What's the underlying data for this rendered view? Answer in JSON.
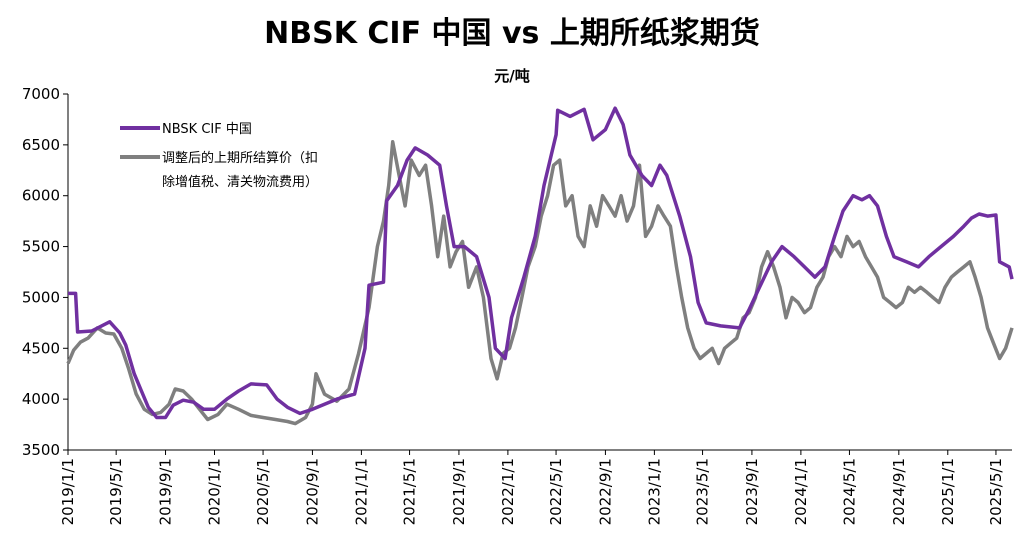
{
  "chart_data": {
    "type": "line",
    "title": "NBSK CIF 中国 vs 上期所纸浆期货",
    "ylabel": "元/吨",
    "xlabel": "",
    "ylim": [
      3500,
      7000
    ],
    "yticks": [
      3500,
      4000,
      4500,
      5000,
      5500,
      6000,
      6500,
      7000
    ],
    "xlim": [
      "2019/1/1",
      "2025/6/10"
    ],
    "xticks": [
      "2019/1/1",
      "2019/5/1",
      "2019/9/1",
      "2020/1/1",
      "2020/5/1",
      "2020/9/1",
      "2021/1/1",
      "2021/5/1",
      "2021/9/1",
      "2022/1/1",
      "2022/5/1",
      "2022/9/1",
      "2023/1/1",
      "2023/5/1",
      "2023/9/1",
      "2024/1/1",
      "2024/5/1",
      "2024/9/1",
      "2025/1/1",
      "2025/5/1"
    ],
    "grid": false,
    "legend_position": "top-left",
    "series": [
      {
        "name": "NBSK CIF 中国",
        "color": "#7030A0",
        "points": [
          [
            "2019/1/1",
            5040
          ],
          [
            "2019/1/20",
            5040
          ],
          [
            "2019/1/25",
            4660
          ],
          [
            "2019/3/1",
            4670
          ],
          [
            "2019/4/15",
            4760
          ],
          [
            "2019/5/10",
            4650
          ],
          [
            "2019/5/25",
            4530
          ],
          [
            "2019/6/15",
            4250
          ],
          [
            "2019/7/1",
            4100
          ],
          [
            "2019/7/20",
            3920
          ],
          [
            "2019/8/10",
            3820
          ],
          [
            "2019/9/1",
            3820
          ],
          [
            "2019/9/20",
            3940
          ],
          [
            "2019/10/15",
            3990
          ],
          [
            "2019/11/10",
            3970
          ],
          [
            "2019/12/5",
            3900
          ],
          [
            "2020/1/1",
            3900
          ],
          [
            "2020/2/1",
            4000
          ],
          [
            "2020/3/1",
            4080
          ],
          [
            "2020/4/1",
            4150
          ],
          [
            "2020/5/10",
            4140
          ],
          [
            "2020/6/5",
            4000
          ],
          [
            "2020/7/1",
            3920
          ],
          [
            "2020/8/1",
            3860
          ],
          [
            "2020/9/1",
            3900
          ],
          [
            "2020/10/1",
            3950
          ],
          [
            "2020/11/1",
            4000
          ],
          [
            "2020/12/15",
            4050
          ],
          [
            "2021/1/10",
            4500
          ],
          [
            "2021/1/20",
            5120
          ],
          [
            "2021/2/25",
            5150
          ],
          [
            "2021/3/5",
            5950
          ],
          [
            "2021/4/1",
            6100
          ],
          [
            "2021/4/25",
            6350
          ],
          [
            "2021/5/15",
            6470
          ],
          [
            "2021/6/15",
            6400
          ],
          [
            "2021/7/15",
            6300
          ],
          [
            "2021/8/1",
            5900
          ],
          [
            "2021/8/20",
            5500
          ],
          [
            "2021/9/15",
            5500
          ],
          [
            "2021/10/15",
            5400
          ],
          [
            "2021/11/15",
            5000
          ],
          [
            "2021/12/1",
            4500
          ],
          [
            "2021/12/25",
            4400
          ],
          [
            "2022/1/10",
            4800
          ],
          [
            "2022/2/10",
            5200
          ],
          [
            "2022/3/10",
            5600
          ],
          [
            "2022/4/1",
            6100
          ],
          [
            "2022/5/1",
            6600
          ],
          [
            "2022/5/5",
            6840
          ],
          [
            "2022/6/5",
            6780
          ],
          [
            "2022/7/10",
            6850
          ],
          [
            "2022/8/1",
            6550
          ],
          [
            "2022/9/1",
            6650
          ],
          [
            "2022/9/25",
            6860
          ],
          [
            "2022/10/15",
            6700
          ],
          [
            "2022/11/1",
            6400
          ],
          [
            "2022/12/1",
            6200
          ],
          [
            "2022/12/25",
            6100
          ],
          [
            "2023/1/15",
            6300
          ],
          [
            "2023/2/1",
            6200
          ],
          [
            "2023/3/5",
            5800
          ],
          [
            "2023/4/1",
            5400
          ],
          [
            "2023/4/20",
            4950
          ],
          [
            "2023/5/10",
            4750
          ],
          [
            "2023/6/15",
            4720
          ],
          [
            "2023/8/1",
            4700
          ],
          [
            "2023/8/25",
            4880
          ],
          [
            "2023/9/20",
            5100
          ],
          [
            "2023/10/20",
            5350
          ],
          [
            "2023/11/15",
            5500
          ],
          [
            "2023/12/15",
            5400
          ],
          [
            "2024/1/10",
            5300
          ],
          [
            "2024/2/5",
            5200
          ],
          [
            "2024/3/1",
            5300
          ],
          [
            "2024/3/25",
            5600
          ],
          [
            "2024/4/15",
            5850
          ],
          [
            "2024/5/10",
            6000
          ],
          [
            "2024/6/1",
            5960
          ],
          [
            "2024/6/20",
            6000
          ],
          [
            "2024/7/10",
            5900
          ],
          [
            "2024/8/1",
            5600
          ],
          [
            "2024/8/20",
            5400
          ],
          [
            "2024/9/20",
            5350
          ],
          [
            "2024/10/20",
            5300
          ],
          [
            "2024/11/15",
            5400
          ],
          [
            "2024/12/15",
            5500
          ],
          [
            "2025/1/15",
            5600
          ],
          [
            "2025/2/10",
            5700
          ],
          [
            "2025/3/1",
            5780
          ],
          [
            "2025/3/20",
            5820
          ],
          [
            "2025/4/10",
            5800
          ],
          [
            "2025/5/1",
            5810
          ],
          [
            "2025/5/10",
            5350
          ],
          [
            "2025/6/3",
            5300
          ],
          [
            "2025/6/10",
            5180
          ]
        ]
      },
      {
        "name": "调整后的上期所结算价（扣除增值税、清关物流费用）",
        "color": "#7F7F7F",
        "points": [
          [
            "2019/1/1",
            4350
          ],
          [
            "2019/1/15",
            4480
          ],
          [
            "2019/2/1",
            4560
          ],
          [
            "2019/2/20",
            4600
          ],
          [
            "2019/3/15",
            4700
          ],
          [
            "2019/4/5",
            4650
          ],
          [
            "2019/4/25",
            4640
          ],
          [
            "2019/5/15",
            4500
          ],
          [
            "2019/6/1",
            4300
          ],
          [
            "2019/6/20",
            4050
          ],
          [
            "2019/7/10",
            3900
          ],
          [
            "2019/7/30",
            3850
          ],
          [
            "2019/8/20",
            3870
          ],
          [
            "2019/9/10",
            3950
          ],
          [
            "2019/9/25",
            4100
          ],
          [
            "2019/10/15",
            4080
          ],
          [
            "2019/11/5",
            4000
          ],
          [
            "2019/11/25",
            3900
          ],
          [
            "2019/12/15",
            3800
          ],
          [
            "2020/1/10",
            3850
          ],
          [
            "2020/2/1",
            3950
          ],
          [
            "2020/3/1",
            3900
          ],
          [
            "2020/4/1",
            3840
          ],
          [
            "2020/5/1",
            3820
          ],
          [
            "2020/6/1",
            3800
          ],
          [
            "2020/7/1",
            3780
          ],
          [
            "2020/7/20",
            3760
          ],
          [
            "2020/8/15",
            3820
          ],
          [
            "2020/9/1",
            3950
          ],
          [
            "2020/9/10",
            4250
          ],
          [
            "2020/10/1",
            4050
          ],
          [
            "2020/11/1",
            3980
          ],
          [
            "2020/12/1",
            4100
          ],
          [
            "2020/12/25",
            4450
          ],
          [
            "2021/1/20",
            4900
          ],
          [
            "2021/2/10",
            5500
          ],
          [
            "2021/2/25",
            5750
          ],
          [
            "2021/3/10",
            6100
          ],
          [
            "2021/3/20",
            6530
          ],
          [
            "2021/4/5",
            6200
          ],
          [
            "2021/4/20",
            5900
          ],
          [
            "2021/5/5",
            6350
          ],
          [
            "2021/5/25",
            6200
          ],
          [
            "2021/6/10",
            6300
          ],
          [
            "2021/6/25",
            5900
          ],
          [
            "2021/7/10",
            5400
          ],
          [
            "2021/7/25",
            5800
          ],
          [
            "2021/8/10",
            5300
          ],
          [
            "2021/8/25",
            5450
          ],
          [
            "2021/9/10",
            5550
          ],
          [
            "2021/9/25",
            5100
          ],
          [
            "2021/10/15",
            5300
          ],
          [
            "2021/11/1",
            5000
          ],
          [
            "2021/11/20",
            4400
          ],
          [
            "2021/12/5",
            4200
          ],
          [
            "2021/12/20",
            4450
          ],
          [
            "2022/1/5",
            4500
          ],
          [
            "2022/1/20",
            4700
          ],
          [
            "2022/2/5",
            5000
          ],
          [
            "2022/2/20",
            5300
          ],
          [
            "2022/3/10",
            5500
          ],
          [
            "2022/3/25",
            5800
          ],
          [
            "2022/4/10",
            6000
          ],
          [
            "2022/4/25",
            6300
          ],
          [
            "2022/5/10",
            6350
          ],
          [
            "2022/5/25",
            5900
          ],
          [
            "2022/6/10",
            6000
          ],
          [
            "2022/6/25",
            5600
          ],
          [
            "2022/7/10",
            5500
          ],
          [
            "2022/7/25",
            5900
          ],
          [
            "2022/8/10",
            5700
          ],
          [
            "2022/8/25",
            6000
          ],
          [
            "2022/9/10",
            5900
          ],
          [
            "2022/9/25",
            5800
          ],
          [
            "2022/10/10",
            6000
          ],
          [
            "2022/10/25",
            5750
          ],
          [
            "2022/11/10",
            5900
          ],
          [
            "2022/11/25",
            6300
          ],
          [
            "2022/12/10",
            5600
          ],
          [
            "2022/12/25",
            5700
          ],
          [
            "2023/1/10",
            5900
          ],
          [
            "2023/1/25",
            5800
          ],
          [
            "2023/2/10",
            5700
          ],
          [
            "2023/2/25",
            5300
          ],
          [
            "2023/3/10",
            5000
          ],
          [
            "2023/3/25",
            4700
          ],
          [
            "2023/4/10",
            4500
          ],
          [
            "2023/4/25",
            4400
          ],
          [
            "2023/5/10",
            4450
          ],
          [
            "2023/5/25",
            4500
          ],
          [
            "2023/6/10",
            4350
          ],
          [
            "2023/6/25",
            4500
          ],
          [
            "2023/7/10",
            4550
          ],
          [
            "2023/7/25",
            4600
          ],
          [
            "2023/8/10",
            4800
          ],
          [
            "2023/8/25",
            4850
          ],
          [
            "2023/9/10",
            5000
          ],
          [
            "2023/9/25",
            5300
          ],
          [
            "2023/10/10",
            5450
          ],
          [
            "2023/10/25",
            5300
          ],
          [
            "2023/11/10",
            5100
          ],
          [
            "2023/11/25",
            4800
          ],
          [
            "2023/12/10",
            5000
          ],
          [
            "2023/12/25",
            4950
          ],
          [
            "2024/1/10",
            4850
          ],
          [
            "2024/1/25",
            4900
          ],
          [
            "2024/2/10",
            5100
          ],
          [
            "2024/2/25",
            5200
          ],
          [
            "2024/3/10",
            5400
          ],
          [
            "2024/3/25",
            5500
          ],
          [
            "2024/4/10",
            5400
          ],
          [
            "2024/4/25",
            5600
          ],
          [
            "2024/5/10",
            5500
          ],
          [
            "2024/5/25",
            5550
          ],
          [
            "2024/6/10",
            5400
          ],
          [
            "2024/6/25",
            5300
          ],
          [
            "2024/7/10",
            5200
          ],
          [
            "2024/7/25",
            5000
          ],
          [
            "2024/8/10",
            4950
          ],
          [
            "2024/8/25",
            4900
          ],
          [
            "2024/9/10",
            4950
          ],
          [
            "2024/9/25",
            5100
          ],
          [
            "2024/10/10",
            5050
          ],
          [
            "2024/10/25",
            5100
          ],
          [
            "2024/11/10",
            5050
          ],
          [
            "2024/11/25",
            5000
          ],
          [
            "2024/12/10",
            4950
          ],
          [
            "2024/12/25",
            5100
          ],
          [
            "2025/1/10",
            5200
          ],
          [
            "2025/1/25",
            5250
          ],
          [
            "2025/2/10",
            5300
          ],
          [
            "2025/2/25",
            5350
          ],
          [
            "2025/3/10",
            5200
          ],
          [
            "2025/3/25",
            5000
          ],
          [
            "2025/4/10",
            4700
          ],
          [
            "2025/4/25",
            4550
          ],
          [
            "2025/5/10",
            4400
          ],
          [
            "2025/5/25",
            4500
          ],
          [
            "2025/6/10",
            4700
          ]
        ]
      }
    ]
  }
}
